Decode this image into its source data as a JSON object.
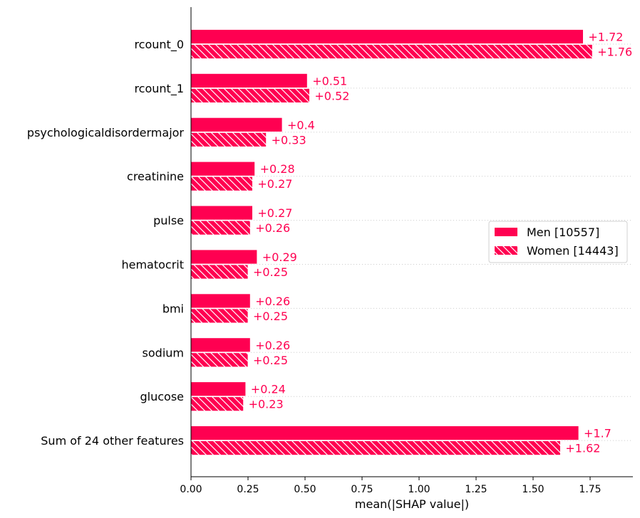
{
  "chart_data": {
    "type": "bar",
    "orientation": "horizontal",
    "categories": [
      "rcount_0",
      "rcount_1",
      "psychologicaldisordermajor",
      "creatinine",
      "pulse",
      "hematocrit",
      "bmi",
      "sodium",
      "glucose",
      "Sum of 24 other features"
    ],
    "series": [
      {
        "name": "Men [10557]",
        "pattern": "solid",
        "values": [
          1.72,
          0.51,
          0.4,
          0.28,
          0.27,
          0.29,
          0.26,
          0.26,
          0.24,
          1.7
        ],
        "labels": [
          "+1.72",
          "+0.51",
          "+0.4",
          "+0.28",
          "+0.27",
          "+0.29",
          "+0.26",
          "+0.26",
          "+0.24",
          "+1.7"
        ]
      },
      {
        "name": "Women [14443]",
        "pattern": "hatched",
        "values": [
          1.76,
          0.52,
          0.33,
          0.27,
          0.26,
          0.25,
          0.25,
          0.25,
          0.23,
          1.62
        ],
        "labels": [
          "+1.76",
          "+0.52",
          "+0.33",
          "+0.27",
          "+0.26",
          "+0.25",
          "+0.25",
          "+0.25",
          "+0.23",
          "+1.62"
        ]
      }
    ],
    "xlabel": "mean(|SHAP value|)",
    "ylabel": "",
    "xlim": [
      0,
      1.9375
    ],
    "xticks": [
      0,
      0.25,
      0.5,
      0.75,
      1.0,
      1.25,
      1.5,
      1.75
    ],
    "xtick_labels": [
      "0.00",
      "0.25",
      "0.50",
      "0.75",
      "1.00",
      "1.25",
      "1.50",
      "1.75"
    ],
    "grid": "dotted horizontal guide lines",
    "legend_position": "right",
    "colors": {
      "bar": "#ff0051",
      "label": "#ff0051",
      "grid": "#cccccc",
      "axis": "#000000"
    }
  }
}
